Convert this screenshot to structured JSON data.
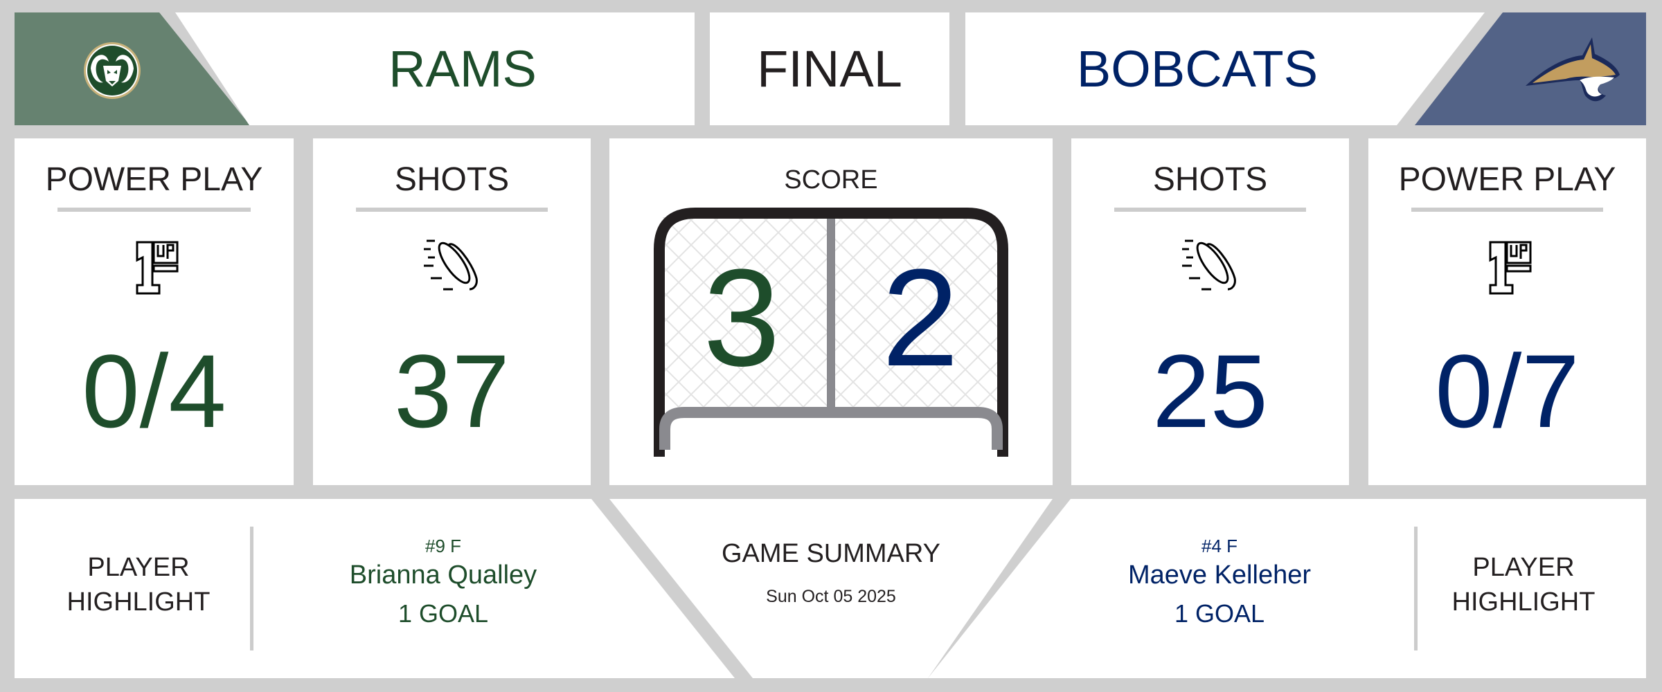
{
  "header": {
    "home": {
      "name": "RAMS",
      "logo": "csu-rams-logo",
      "panel_color": "#668270",
      "text_color": "#1e4d2b"
    },
    "status": "FINAL",
    "away": {
      "name": "BOBCATS",
      "logo": "montana-state-bobcats-logo",
      "panel_color": "#536387",
      "text_color": "#002266"
    }
  },
  "stats": {
    "home_power_play": {
      "label": "POWER PLAY",
      "icon": "1up-icon",
      "value": "0/4"
    },
    "home_shots": {
      "label": "SHOTS",
      "icon": "hockey-puck-icon",
      "value": "37"
    },
    "score": {
      "label": "SCORE",
      "home": "3",
      "away": "2"
    },
    "away_shots": {
      "label": "SHOTS",
      "icon": "hockey-puck-icon",
      "value": "25"
    },
    "away_power_play": {
      "label": "POWER PLAY",
      "icon": "1up-icon",
      "value": "0/7"
    }
  },
  "summary": {
    "home_highlight": {
      "label_line1": "PLAYER",
      "label_line2": "HIGHLIGHT",
      "number": "#9 F",
      "name": "Brianna Qualley",
      "stat": "1 GOAL"
    },
    "title": "GAME SUMMARY",
    "date": "Sun Oct 05 2025",
    "away_highlight": {
      "label_line1": "PLAYER",
      "label_line2": "HIGHLIGHT",
      "number": "#4 F",
      "name": "Maeve Kelleher",
      "stat": "1 GOAL"
    }
  },
  "colors": {
    "background": "#cfcfcf",
    "home": "#1e4d2b",
    "away": "#002266",
    "divider": "#cccccc"
  }
}
